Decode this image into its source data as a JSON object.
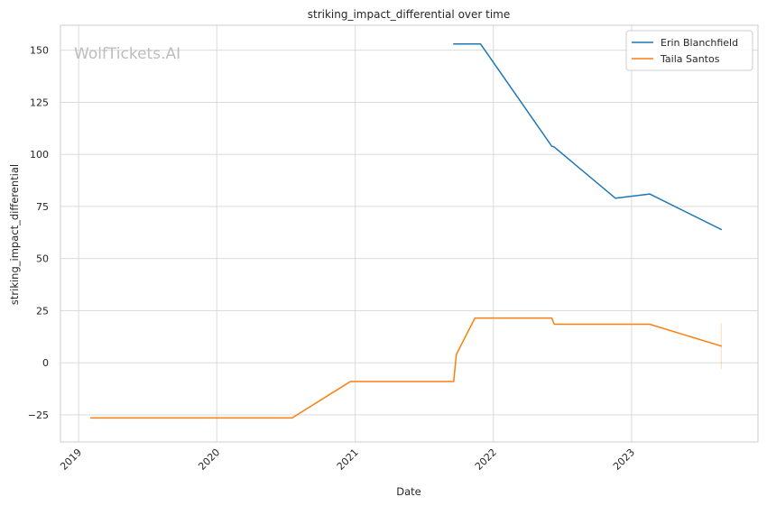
{
  "watermark": "WolfTickets.AI",
  "chart_data": {
    "type": "line",
    "title": "striking_impact_differential over time",
    "xlabel": "Date",
    "ylabel": "striking_impact_differential",
    "xlim": [
      "2018-11-14",
      "2023-12-01"
    ],
    "ylim": [
      -38,
      162
    ],
    "xticks": [
      {
        "label": "2019",
        "date": "2019-01-01"
      },
      {
        "label": "2020",
        "date": "2020-01-01"
      },
      {
        "label": "2021",
        "date": "2021-01-01"
      },
      {
        "label": "2022",
        "date": "2022-01-01"
      },
      {
        "label": "2023",
        "date": "2023-01-01"
      }
    ],
    "yticks": [
      -25,
      0,
      25,
      50,
      75,
      100,
      125,
      150
    ],
    "grid": true,
    "legend": "top-right",
    "series": [
      {
        "name": "Erin Blanchfield",
        "color": "#1f77b4",
        "points": [
          [
            "2021-09-18",
            153
          ],
          [
            "2021-11-28",
            153
          ],
          [
            "2022-06-04",
            104
          ],
          [
            "2022-06-11",
            103.5
          ],
          [
            "2022-11-19",
            79
          ],
          [
            "2023-02-18",
            81
          ],
          [
            "2023-08-26",
            64
          ]
        ]
      },
      {
        "name": "Taila Santos",
        "color": "#ff7f0e",
        "points": [
          [
            "2019-02-02",
            -26.5
          ],
          [
            "2020-07-18",
            -26.5
          ],
          [
            "2020-12-19",
            -9
          ],
          [
            "2021-09-18",
            -9
          ],
          [
            "2021-09-25",
            4
          ],
          [
            "2021-11-13",
            21.5
          ],
          [
            "2022-06-04",
            21.5
          ],
          [
            "2022-06-11",
            18.5
          ],
          [
            "2023-02-18",
            18.5
          ],
          [
            "2023-08-26",
            8
          ]
        ],
        "error_band": {
          "date": "2023-08-26",
          "low": -3,
          "high": 19
        }
      }
    ]
  }
}
